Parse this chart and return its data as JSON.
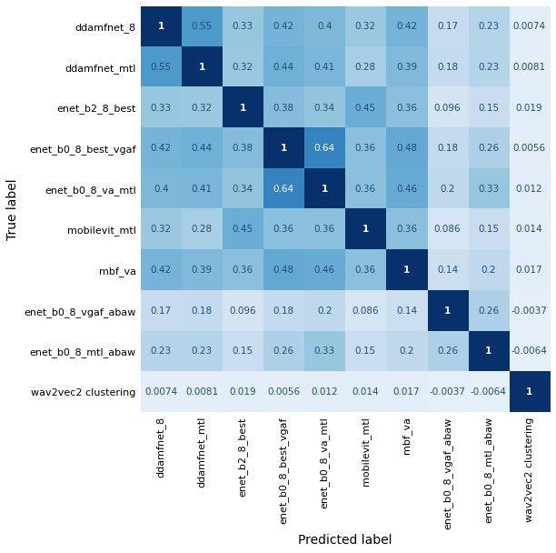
{
  "labels": [
    "ddamfnet_8",
    "ddamfnet_mtl",
    "enet_b2_8_best",
    "enet_b0_8_best_vgaf",
    "enet_b0_8_va_mtl",
    "mobilevit_mtl",
    "mbf_va",
    "enet_b0_8_vgaf_abaw",
    "enet_b0_8_mtl_abaw",
    "wav2vec2 clustering"
  ],
  "matrix": [
    [
      1,
      0.55,
      0.33,
      0.42,
      0.4,
      0.32,
      0.42,
      0.17,
      0.23,
      0.0074
    ],
    [
      0.55,
      1,
      0.32,
      0.44,
      0.41,
      0.28,
      0.39,
      0.18,
      0.23,
      0.0081
    ],
    [
      0.33,
      0.32,
      1,
      0.38,
      0.34,
      0.45,
      0.36,
      0.096,
      0.15,
      0.019
    ],
    [
      0.42,
      0.44,
      0.38,
      1,
      0.64,
      0.36,
      0.48,
      0.18,
      0.26,
      0.0056
    ],
    [
      0.4,
      0.41,
      0.34,
      0.64,
      1,
      0.36,
      0.46,
      0.2,
      0.33,
      0.012
    ],
    [
      0.32,
      0.28,
      0.45,
      0.36,
      0.36,
      1,
      0.36,
      0.086,
      0.15,
      0.014
    ],
    [
      0.42,
      0.39,
      0.36,
      0.48,
      0.46,
      0.36,
      1,
      0.14,
      0.2,
      0.017
    ],
    [
      0.17,
      0.18,
      0.096,
      0.18,
      0.2,
      0.086,
      0.14,
      1,
      0.26,
      -0.0037
    ],
    [
      0.23,
      0.23,
      0.15,
      0.26,
      0.33,
      0.15,
      0.2,
      0.26,
      1,
      -0.0064
    ],
    [
      0.0074,
      0.0081,
      0.019,
      0.0056,
      0.012,
      0.014,
      0.017,
      -0.0037,
      -0.0064,
      1
    ]
  ],
  "text_values": [
    [
      "1",
      "0.55",
      "0.33",
      "0.42",
      "0.4",
      "0.32",
      "0.42",
      "0.17",
      "0.23",
      "0.0074"
    ],
    [
      "0.55",
      "1",
      "0.32",
      "0.44",
      "0.41",
      "0.28",
      "0.39",
      "0.18",
      "0.23",
      "0.0081"
    ],
    [
      "0.33",
      "0.32",
      "1",
      "0.38",
      "0.34",
      "0.45",
      "0.36",
      "0.096",
      "0.15",
      "0.019"
    ],
    [
      "0.42",
      "0.44",
      "0.38",
      "1",
      "0.64",
      "0.36",
      "0.48",
      "0.18",
      "0.26",
      "0.0056"
    ],
    [
      "0.4",
      "0.41",
      "0.34",
      "0.64",
      "1",
      "0.36",
      "0.46",
      "0.2",
      "0.33",
      "0.012"
    ],
    [
      "0.32",
      "0.28",
      "0.45",
      "0.36",
      "0.36",
      "1",
      "0.36",
      "0.086",
      "0.15",
      "0.014"
    ],
    [
      "0.42",
      "0.39",
      "0.36",
      "0.48",
      "0.46",
      "0.36",
      "1",
      "0.14",
      "0.2",
      "0.017"
    ],
    [
      "0.17",
      "0.18",
      "0.096",
      "0.18",
      "0.2",
      "0.086",
      "0.14",
      "1",
      "0.26",
      "-0.0037"
    ],
    [
      "0.23",
      "0.23",
      "0.15",
      "0.26",
      "0.33",
      "0.15",
      "0.2",
      "0.26",
      "1",
      "-0.0064"
    ],
    [
      "0.0074",
      "0.0081",
      "0.019",
      "0.0056",
      "0.012",
      "0.014",
      "0.017",
      "-0.0037",
      "-0.0064",
      "1"
    ]
  ],
  "xlabel": "Predicted label",
  "ylabel": "True label",
  "cmap": "Blues",
  "vmin": -0.1,
  "vmax": 1.0,
  "figsize": [
    6.12,
    6.08
  ],
  "dpi": 100,
  "text_color_threshold": 0.6,
  "text_color_dark": "#1f4e79",
  "text_color_light": "white",
  "label_fontsize": 8,
  "annot_fontsize": 7.5,
  "xlabel_fontsize": 10,
  "ylabel_fontsize": 10
}
